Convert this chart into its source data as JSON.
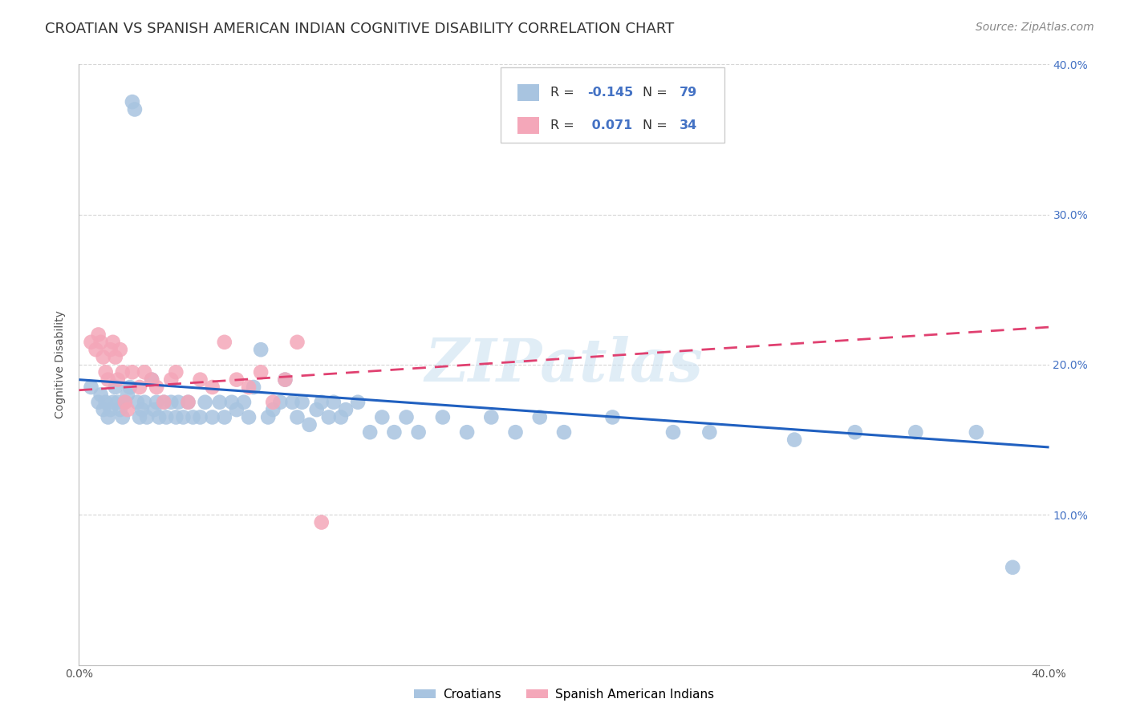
{
  "title": "CROATIAN VS SPANISH AMERICAN INDIAN COGNITIVE DISABILITY CORRELATION CHART",
  "source": "Source: ZipAtlas.com",
  "ylabel": "Cognitive Disability",
  "watermark": "ZIPatlas",
  "x_min": 0.0,
  "x_max": 0.4,
  "y_min": 0.0,
  "y_max": 0.4,
  "croatian_color": "#a8c4e0",
  "spanish_color": "#f4a7b9",
  "croatian_line_color": "#2060c0",
  "spanish_line_color": "#e04070",
  "croatian_R": -0.145,
  "croatian_N": 79,
  "spanish_R": 0.071,
  "spanish_N": 34,
  "legend_label_croatian": "Croatians",
  "legend_label_spanish": "Spanish American Indians",
  "title_fontsize": 13,
  "source_fontsize": 10,
  "label_fontsize": 10,
  "tick_fontsize": 10,
  "croatian_x": [
    0.005,
    0.008,
    0.009,
    0.01,
    0.011,
    0.012,
    0.013,
    0.014,
    0.015,
    0.016,
    0.017,
    0.018,
    0.019,
    0.02,
    0.021,
    0.022,
    0.023,
    0.024,
    0.025,
    0.026,
    0.027,
    0.028,
    0.03,
    0.031,
    0.032,
    0.033,
    0.035,
    0.036,
    0.038,
    0.04,
    0.041,
    0.043,
    0.045,
    0.047,
    0.05,
    0.052,
    0.055,
    0.058,
    0.06,
    0.063,
    0.065,
    0.068,
    0.07,
    0.072,
    0.075,
    0.078,
    0.08,
    0.083,
    0.085,
    0.088,
    0.09,
    0.092,
    0.095,
    0.098,
    0.1,
    0.103,
    0.105,
    0.108,
    0.11,
    0.115,
    0.12,
    0.125,
    0.13,
    0.135,
    0.14,
    0.15,
    0.16,
    0.17,
    0.18,
    0.19,
    0.2,
    0.22,
    0.245,
    0.26,
    0.295,
    0.32,
    0.345,
    0.37,
    0.385
  ],
  "croatian_y": [
    0.185,
    0.175,
    0.18,
    0.17,
    0.175,
    0.165,
    0.17,
    0.175,
    0.185,
    0.175,
    0.17,
    0.165,
    0.175,
    0.18,
    0.185,
    0.375,
    0.37,
    0.175,
    0.165,
    0.17,
    0.175,
    0.165,
    0.19,
    0.17,
    0.175,
    0.165,
    0.175,
    0.165,
    0.175,
    0.165,
    0.175,
    0.165,
    0.175,
    0.165,
    0.165,
    0.175,
    0.165,
    0.175,
    0.165,
    0.175,
    0.17,
    0.175,
    0.165,
    0.185,
    0.21,
    0.165,
    0.17,
    0.175,
    0.19,
    0.175,
    0.165,
    0.175,
    0.16,
    0.17,
    0.175,
    0.165,
    0.175,
    0.165,
    0.17,
    0.175,
    0.155,
    0.165,
    0.155,
    0.165,
    0.155,
    0.165,
    0.155,
    0.165,
    0.155,
    0.165,
    0.155,
    0.165,
    0.155,
    0.155,
    0.15,
    0.155,
    0.155,
    0.155,
    0.065
  ],
  "spanish_x": [
    0.005,
    0.007,
    0.008,
    0.009,
    0.01,
    0.011,
    0.012,
    0.013,
    0.014,
    0.015,
    0.016,
    0.017,
    0.018,
    0.019,
    0.02,
    0.022,
    0.025,
    0.027,
    0.03,
    0.032,
    0.035,
    0.038,
    0.04,
    0.045,
    0.05,
    0.055,
    0.06,
    0.065,
    0.07,
    0.075,
    0.08,
    0.085,
    0.09,
    0.1
  ],
  "spanish_y": [
    0.215,
    0.21,
    0.22,
    0.215,
    0.205,
    0.195,
    0.19,
    0.21,
    0.215,
    0.205,
    0.19,
    0.21,
    0.195,
    0.175,
    0.17,
    0.195,
    0.185,
    0.195,
    0.19,
    0.185,
    0.175,
    0.19,
    0.195,
    0.175,
    0.19,
    0.185,
    0.215,
    0.19,
    0.185,
    0.195,
    0.175,
    0.19,
    0.215,
    0.095
  ],
  "blue_line_x": [
    0.0,
    0.4
  ],
  "blue_line_y": [
    0.19,
    0.145
  ],
  "pink_line_x": [
    0.0,
    0.4
  ],
  "pink_line_y": [
    0.183,
    0.225
  ]
}
